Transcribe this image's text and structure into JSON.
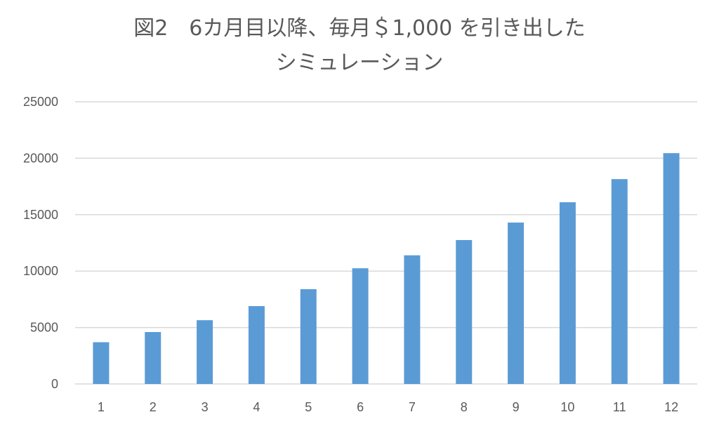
{
  "chart_data": {
    "type": "bar",
    "title": "図2　6カ月目以降、毎月＄1,000 を引き出した",
    "subtitle": "シミュレーション",
    "categories": [
      "1",
      "2",
      "3",
      "4",
      "5",
      "6",
      "7",
      "8",
      "9",
      "10",
      "11",
      "12"
    ],
    "values": [
      3700,
      4600,
      5650,
      6900,
      8400,
      10250,
      11400,
      12750,
      14300,
      16100,
      18150,
      20450
    ],
    "ylim": [
      0,
      25000
    ],
    "yticks": [
      "0",
      "5000",
      "10000",
      "15000",
      "20000",
      "25000"
    ],
    "grid": true,
    "bar_color": "#5b9bd5",
    "grid_color": "#d9d9d9"
  }
}
